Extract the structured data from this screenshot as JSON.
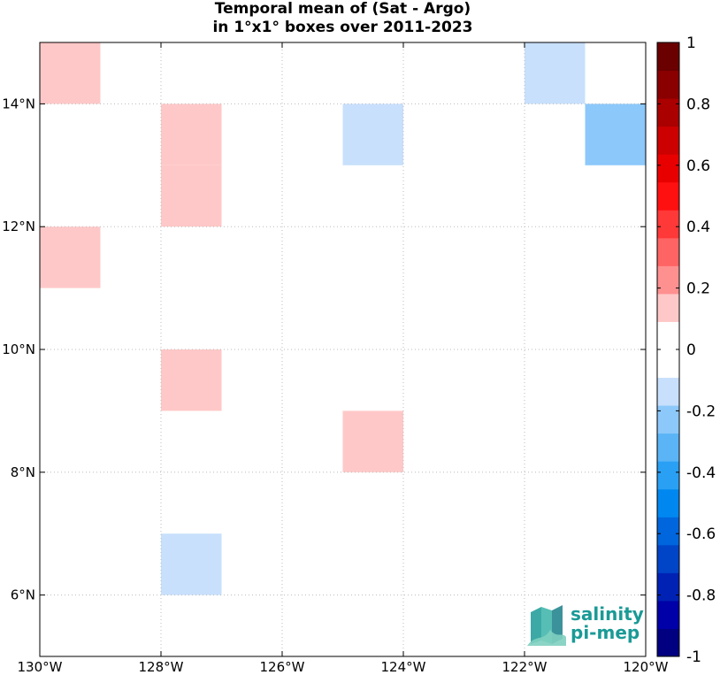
{
  "title": {
    "line1": "Temporal mean of (Sat - Argo)",
    "line2": "in 1°x1° boxes over 2011-2023"
  },
  "map": {
    "lon_range": [
      -130,
      -120
    ],
    "lat_range": [
      5,
      15
    ],
    "grid": true,
    "x_ticks": [
      {
        "lon": -130,
        "label": "130°W"
      },
      {
        "lon": -128,
        "label": "128°W"
      },
      {
        "lon": -126,
        "label": "126°W"
      },
      {
        "lon": -124,
        "label": "124°W"
      },
      {
        "lon": -122,
        "label": "122°W"
      },
      {
        "lon": -120,
        "label": "120°W"
      }
    ],
    "y_ticks": [
      {
        "lat": 14,
        "label": "14°N"
      },
      {
        "lat": 12,
        "label": "12°N"
      },
      {
        "lat": 10,
        "label": "10°N"
      },
      {
        "lat": 8,
        "label": "8°N"
      },
      {
        "lat": 6,
        "label": "6°N"
      }
    ],
    "cells": [
      {
        "lon": -130,
        "lat": 14,
        "value": 0.15
      },
      {
        "lon": -122,
        "lat": 14,
        "value": -0.15
      },
      {
        "lon": -128,
        "lat": 13,
        "value": 0.15
      },
      {
        "lon": -128,
        "lat": 12,
        "value": 0.15
      },
      {
        "lon": -125,
        "lat": 13,
        "value": -0.15
      },
      {
        "lon": -121,
        "lat": 13,
        "value": -0.25
      },
      {
        "lon": -130,
        "lat": 11,
        "value": 0.15
      },
      {
        "lon": -128,
        "lat": 9,
        "value": 0.15
      },
      {
        "lon": -125,
        "lat": 8,
        "value": 0.15
      },
      {
        "lon": -128,
        "lat": 6,
        "value": -0.15
      }
    ]
  },
  "colorbar": {
    "range": [
      -1,
      1
    ],
    "colors": [
      "#000080",
      "#0000a8",
      "#0022b4",
      "#0044c8",
      "#0066dd",
      "#0088f0",
      "#2aa0f4",
      "#5ab4f6",
      "#8cc8fa",
      "#c8e0fc",
      "#ffffff",
      "#ffffff",
      "#ffc8c8",
      "#ff9090",
      "#ff6464",
      "#ff3838",
      "#ff1010",
      "#e80000",
      "#cc0000",
      "#aa0000",
      "#8a0000",
      "#6a0000"
    ],
    "ticks": [
      {
        "value": 1,
        "label": "1"
      },
      {
        "value": 0.8,
        "label": "0.8"
      },
      {
        "value": 0.6,
        "label": "0.6"
      },
      {
        "value": 0.4,
        "label": "0.4"
      },
      {
        "value": 0.2,
        "label": "0.2"
      },
      {
        "value": 0,
        "label": "0"
      },
      {
        "value": -0.2,
        "label": "-0.2"
      },
      {
        "value": -0.4,
        "label": "-0.4"
      },
      {
        "value": -0.6,
        "label": "-0.6"
      },
      {
        "value": -0.8,
        "label": "-0.8"
      },
      {
        "value": -1,
        "label": "-1"
      }
    ]
  },
  "logo": {
    "line1": "salinity",
    "line2": "pi-mep",
    "color": "#1a9a96"
  }
}
